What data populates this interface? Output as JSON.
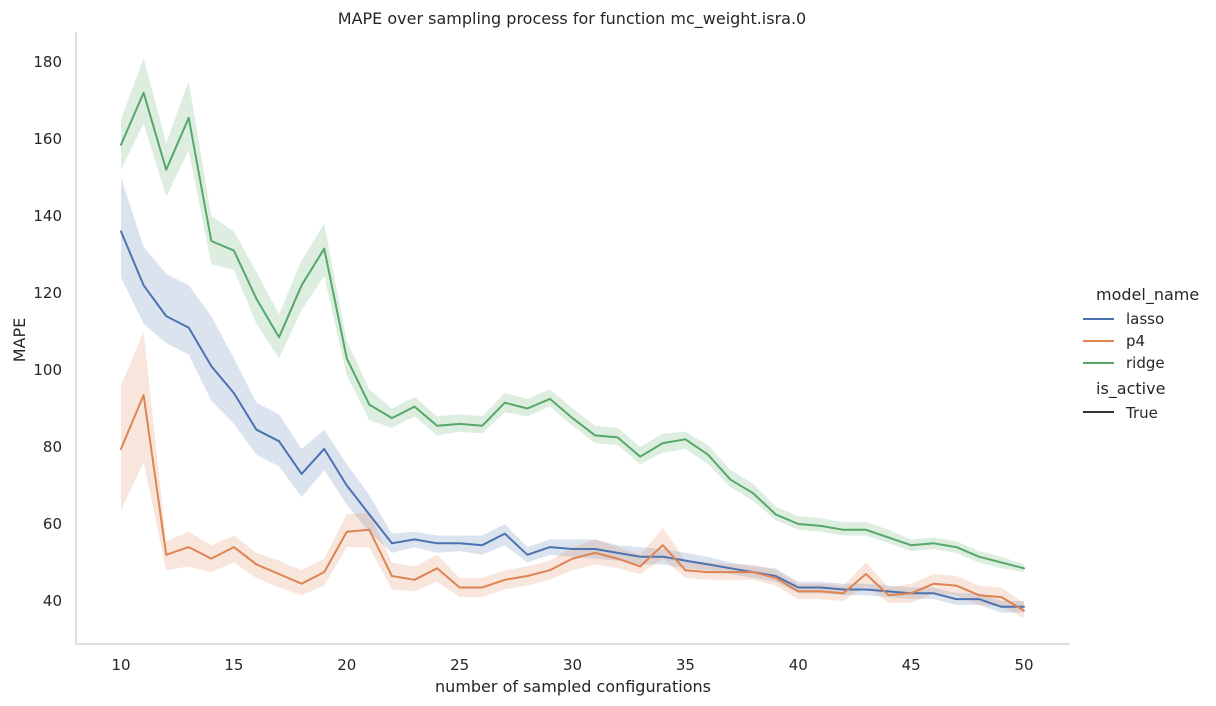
{
  "chart_data": {
    "type": "line",
    "title": "MAPE over sampling process for function mc_weight.isra.0",
    "xlabel": "number of sampled configurations",
    "ylabel": "MAPE",
    "xlim": [
      8,
      52
    ],
    "ylim": [
      29,
      188
    ],
    "xticks": [
      10,
      15,
      20,
      25,
      30,
      35,
      40,
      45,
      50
    ],
    "yticks": [
      40,
      60,
      80,
      100,
      120,
      140,
      160,
      180
    ],
    "grid": false,
    "legend": {
      "placement": "right",
      "hue_title": "model_name",
      "style_title": "is_active",
      "style_entries": [
        "True"
      ]
    },
    "x": [
      10,
      11,
      12,
      13,
      14,
      15,
      16,
      17,
      18,
      19,
      20,
      21,
      22,
      23,
      24,
      25,
      26,
      27,
      28,
      29,
      30,
      31,
      32,
      33,
      34,
      35,
      36,
      37,
      38,
      39,
      40,
      41,
      42,
      43,
      44,
      45,
      46,
      47,
      48,
      49,
      50
    ],
    "series": [
      {
        "name": "lasso",
        "color": "#4c72b0",
        "values": [
          136,
          122,
          114,
          111,
          101,
          94,
          84.5,
          81.5,
          73,
          79.5,
          70,
          62.5,
          55,
          56,
          55,
          55,
          54.5,
          57.5,
          52,
          54,
          53.5,
          53.5,
          52.5,
          51.5,
          51.5,
          50.5,
          49.5,
          48.5,
          47.5,
          46.5,
          43.5,
          43.5,
          43,
          43,
          42.5,
          42,
          42,
          40.5,
          40.5,
          38.5,
          38.5
        ],
        "lower": [
          124,
          112,
          107,
          104,
          92,
          86,
          78,
          75,
          67,
          74,
          65,
          58,
          52.5,
          54,
          52.5,
          53,
          52,
          54.5,
          50,
          52,
          51.5,
          51,
          50.5,
          49.5,
          49.5,
          48.5,
          48,
          47,
          46,
          45,
          42,
          42,
          41.5,
          41.5,
          41,
          40.5,
          40.5,
          39,
          39,
          37,
          37
        ],
        "upper": [
          150,
          132,
          125,
          122,
          114,
          103,
          91.5,
          88.5,
          79.5,
          84.5,
          75.5,
          67.5,
          57.5,
          58,
          57,
          57,
          57,
          60,
          54,
          56,
          56,
          56,
          54.5,
          54,
          53.5,
          52.5,
          51.5,
          50,
          49,
          48.5,
          45,
          45,
          44.5,
          44.5,
          44,
          43.5,
          43.5,
          42,
          42,
          40,
          40
        ]
      },
      {
        "name": "p4",
        "color": "#dd8452",
        "values": [
          79.5,
          93.5,
          52,
          54,
          51,
          54,
          49.5,
          47,
          44.5,
          47.5,
          58,
          58.5,
          46.5,
          45.5,
          48.5,
          43.5,
          43.5,
          45.5,
          46.5,
          48,
          51,
          52.5,
          51,
          49,
          54.5,
          48,
          47.5,
          47.5,
          47.5,
          46,
          42.5,
          42.5,
          42,
          47,
          41.5,
          42,
          44.5,
          44,
          41.5,
          41,
          37.5
        ],
        "lower": [
          63.5,
          76,
          48,
          49,
          47.5,
          50,
          46,
          43.5,
          41.5,
          44,
          54,
          54,
          43,
          42.5,
          45,
          41,
          41,
          43,
          44,
          45.5,
          48,
          49.5,
          48.5,
          47,
          51,
          46,
          45.5,
          45.5,
          45.5,
          44,
          40.5,
          40.5,
          40,
          44,
          39.5,
          39.5,
          42,
          41.5,
          39,
          38.5,
          35.5
        ],
        "upper": [
          96,
          110,
          55.5,
          58,
          54.5,
          57,
          52.5,
          50.5,
          48,
          51,
          62.5,
          63,
          50,
          49,
          52,
          46,
          46,
          48,
          49,
          50.5,
          54,
          56,
          54,
          52,
          59,
          50.5,
          50,
          49.5,
          49.5,
          48,
          44.5,
          44.5,
          44,
          50,
          43.5,
          44.5,
          47,
          46.5,
          44,
          43.5,
          39.5
        ]
      },
      {
        "name": "ridge",
        "color": "#55a868",
        "values": [
          158.5,
          172,
          152,
          165.5,
          133.5,
          131,
          118.5,
          108.5,
          122,
          131.5,
          103,
          91,
          87.5,
          90.5,
          85.5,
          86,
          85.5,
          91.5,
          90,
          92.5,
          87.5,
          83,
          82.5,
          77.5,
          81,
          82,
          78,
          71.5,
          68,
          62.5,
          60,
          59.5,
          58.5,
          58.5,
          56.5,
          54.5,
          55,
          54,
          51.5,
          50,
          48.5
        ],
        "lower": [
          152,
          164,
          145,
          157,
          127.5,
          126,
          112,
          103,
          115.5,
          124.5,
          98.5,
          87,
          85,
          88,
          83,
          84,
          83.5,
          89,
          88,
          90.5,
          85.5,
          81,
          80.5,
          75.5,
          78.5,
          79.5,
          75.5,
          69.5,
          66,
          61,
          58.5,
          58,
          57,
          57,
          55,
          53,
          53.5,
          52.5,
          50,
          48.5,
          47.5
        ],
        "upper": [
          165,
          181,
          159,
          175,
          140,
          136,
          125.5,
          114.5,
          128.5,
          138,
          107.5,
          95,
          90,
          93,
          88,
          88.5,
          88,
          94,
          92.5,
          95,
          90,
          85.5,
          85,
          80,
          83.5,
          84,
          80.5,
          74,
          70.5,
          64.5,
          62,
          61.5,
          60.5,
          60.5,
          58.5,
          56,
          56.5,
          55.5,
          53,
          51.5,
          49.5
        ]
      }
    ]
  }
}
